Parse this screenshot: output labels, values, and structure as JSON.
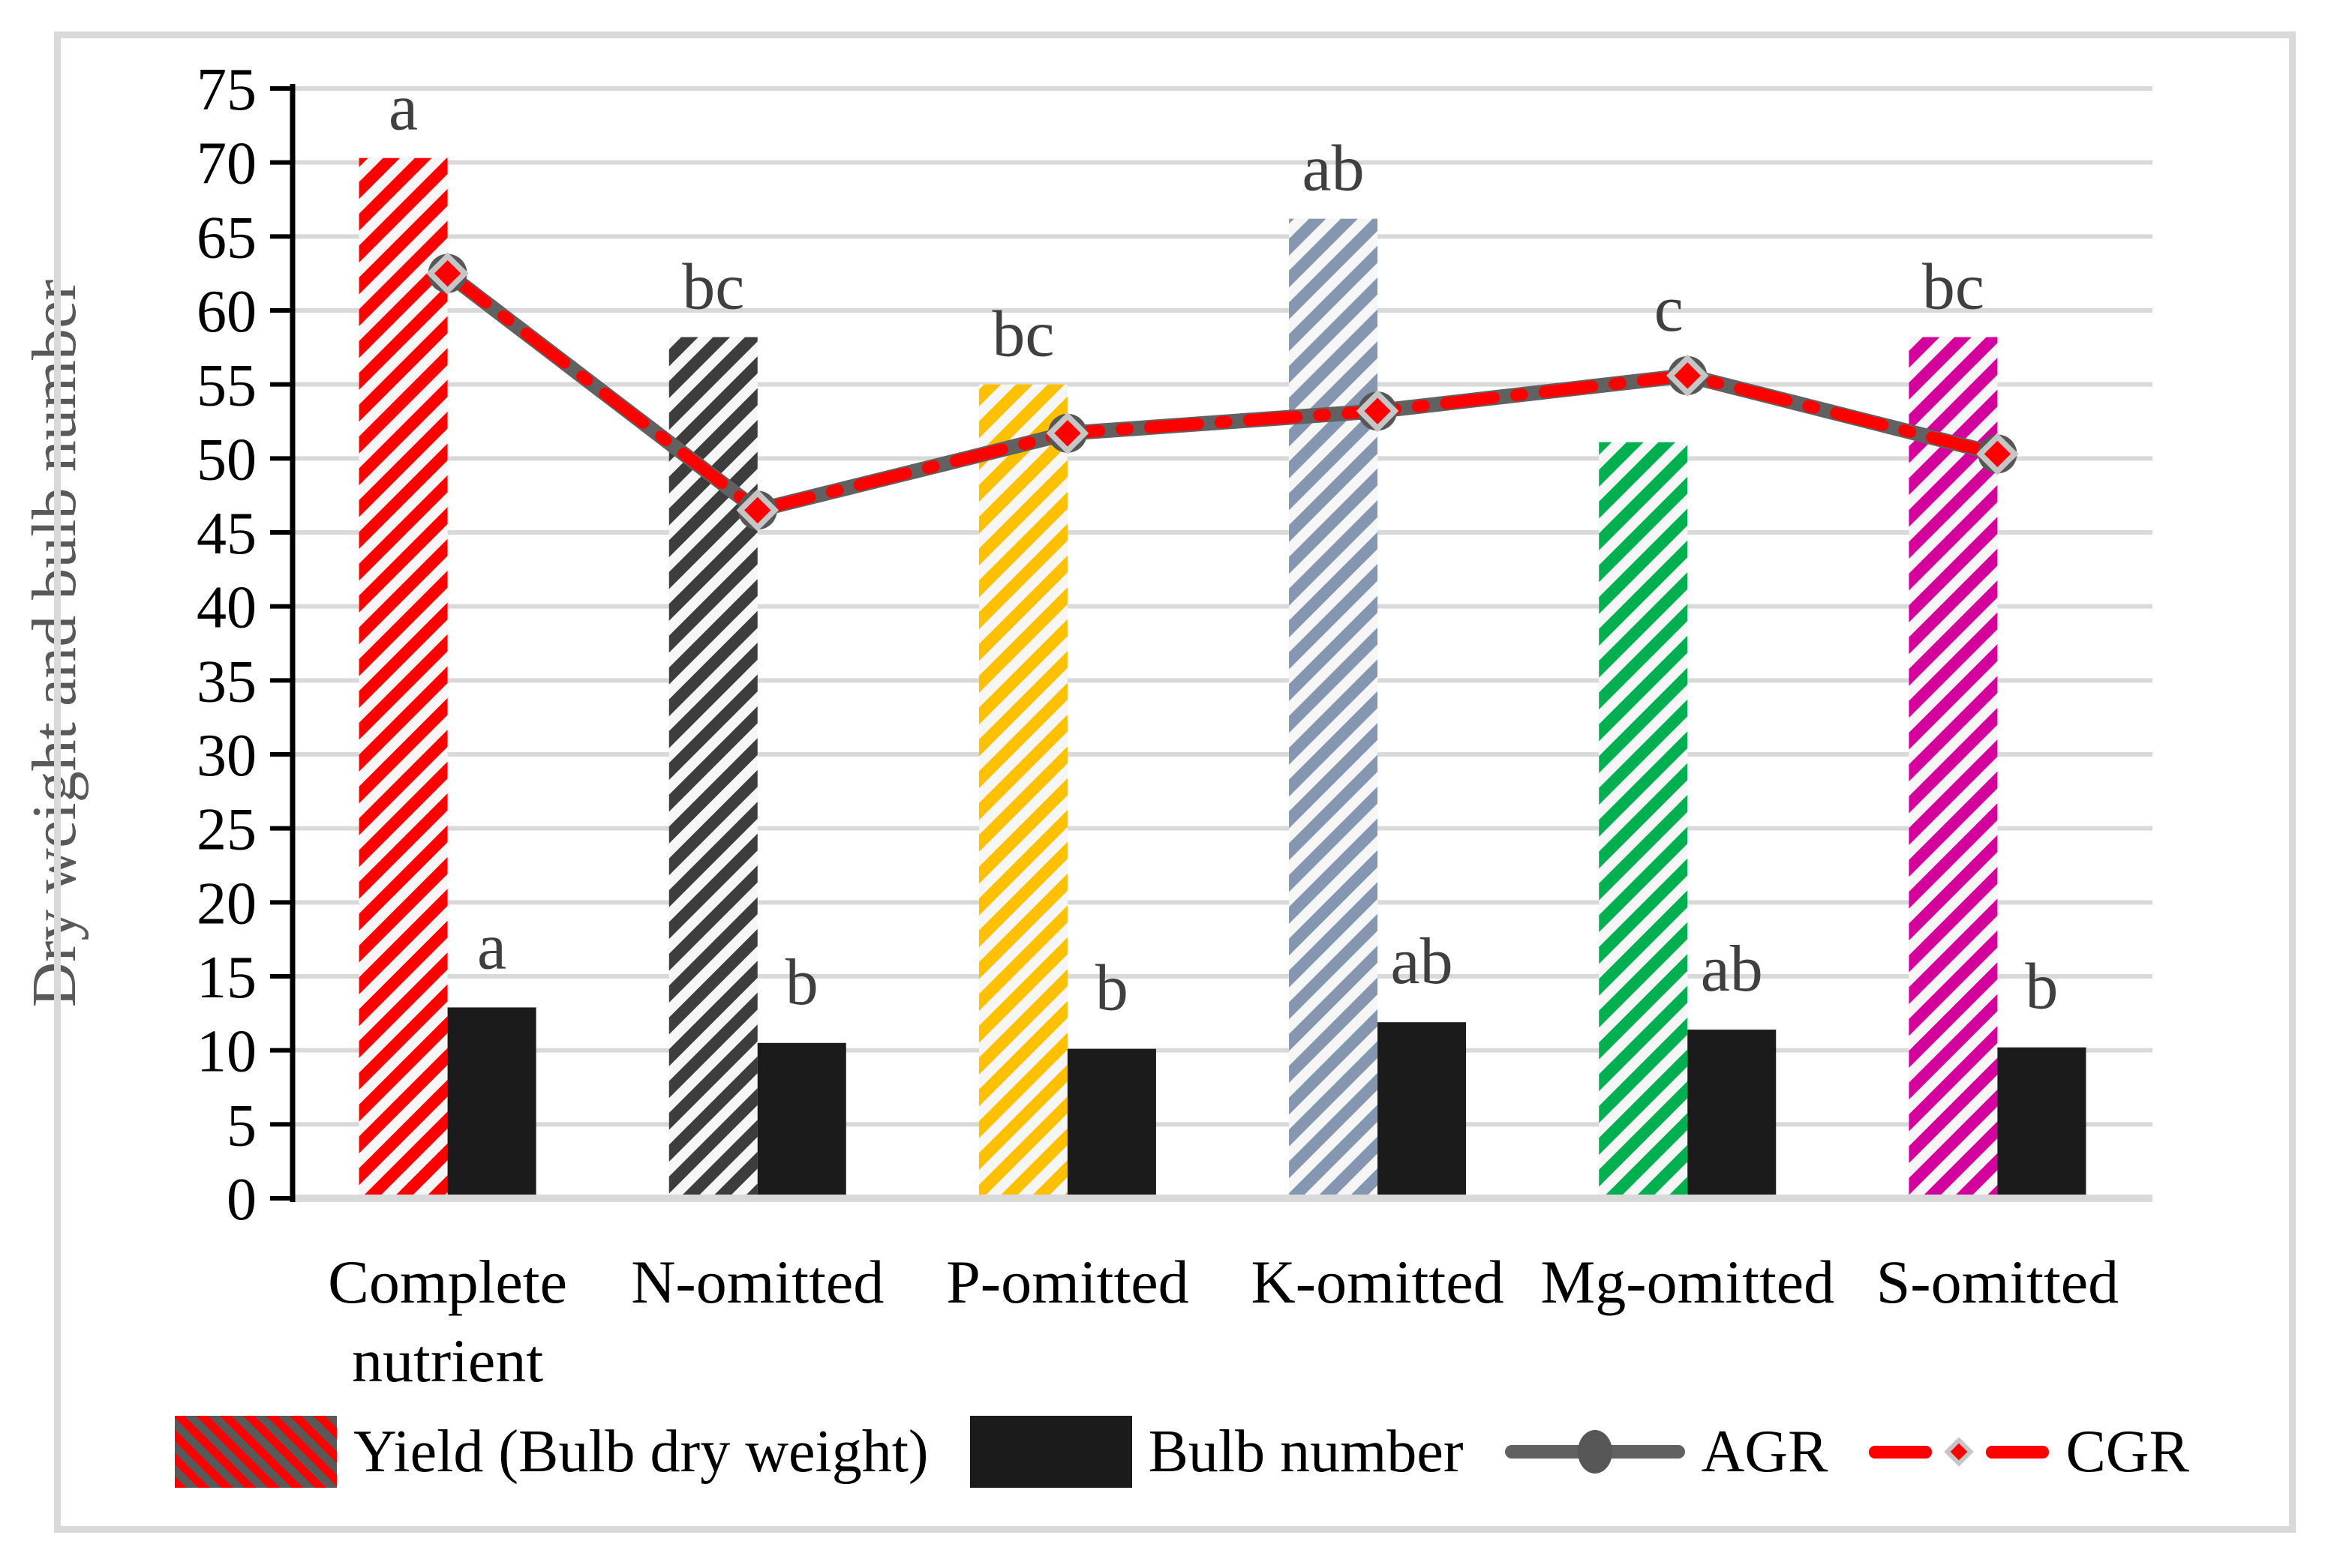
{
  "figure": {
    "background": "#FFFFFF",
    "border_color": "#D9D9D9",
    "colors": {
      "grid": "#D9D9D9",
      "axis": "#000000",
      "tick_label": "#000000",
      "sig_letter": "#3F3F3F",
      "ylabel_color": "#595959",
      "hatch_bg": "#F6F6F6",
      "agr_line": "#616161",
      "cgr_line": "#FF0000",
      "marker_ring": "#575757",
      "marker_diamond": "#C6C6C6",
      "marker_core": "#FF0000",
      "bulb_bar": "#1B1B1B"
    }
  },
  "chart_data": {
    "type": "combo-bar-line",
    "title": "",
    "xlabel": "",
    "ylabel": "Dry weight and bulb number",
    "ylim": [
      0,
      75
    ],
    "ytick_step": 5,
    "grid": true,
    "legend_position": "bottom",
    "categories": [
      "Complete nutrient",
      "N-omitted",
      "P-omitted",
      "K-omitted",
      "Mg-omitted",
      "S-omitted"
    ],
    "series": [
      {
        "name": "Yield (Bulb dry weight)",
        "type": "bar",
        "style": "diagonal-hatch",
        "values": [
          70.3,
          58.2,
          55.0,
          66.2,
          51.1,
          58.2
        ],
        "letters": [
          "a",
          "bc",
          "bc",
          "ab",
          "c",
          "bc"
        ],
        "letter_anchor": [
          "bar",
          "bar",
          "bar",
          "bar",
          "line",
          "bar"
        ],
        "hatch_colors": [
          "#FF0000",
          "#3D3D3D",
          "#FFC000",
          "#8496B0",
          "#00B050",
          "#D4009C"
        ]
      },
      {
        "name": "Bulb number",
        "type": "bar",
        "style": "solid",
        "color": "#1B1B1B",
        "values": [
          12.9,
          10.5,
          10.1,
          11.9,
          11.4,
          10.2
        ],
        "letters": [
          "a",
          "b",
          "b",
          "ab",
          "ab",
          "b"
        ]
      },
      {
        "name": "AGR",
        "type": "line",
        "color": "#616161",
        "marker": "circle",
        "values": [
          62.5,
          46.5,
          51.7,
          53.2,
          55.6,
          50.3
        ]
      },
      {
        "name": "CGR",
        "type": "line",
        "color": "#FF0000",
        "dash": "dash-dot",
        "marker": "diamond",
        "values": [
          62.5,
          46.5,
          51.7,
          53.2,
          55.6,
          50.3
        ]
      }
    ]
  },
  "legend": {
    "items": [
      {
        "label": "Yield (Bulb dry weight)",
        "swatch": "red-hatch"
      },
      {
        "label": "Bulb number",
        "swatch": "black-solid"
      },
      {
        "label": "AGR",
        "swatch": "gray-line-circle"
      },
      {
        "label": "CGR",
        "swatch": "red-dash-diamond"
      }
    ]
  }
}
